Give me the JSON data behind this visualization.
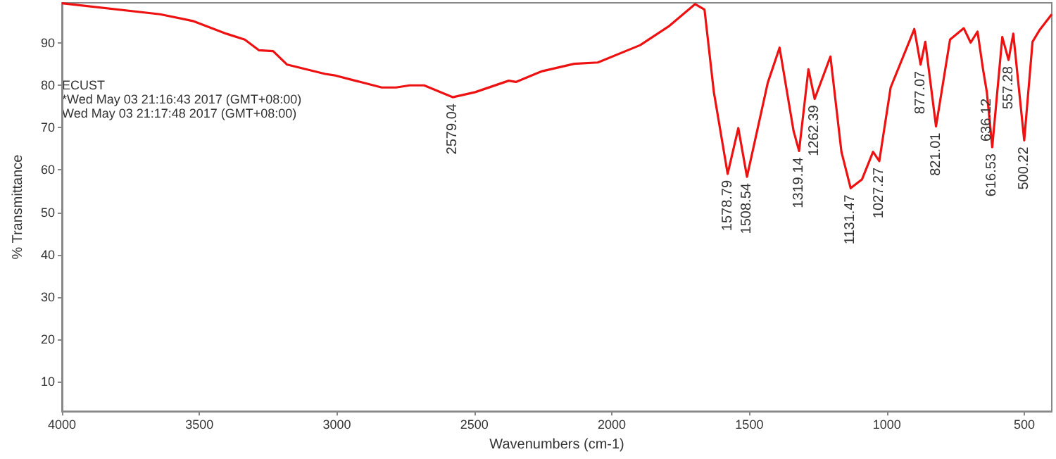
{
  "chart_data": {
    "type": "line",
    "xlabel": "Wavenumbers (cm-1)",
    "ylabel": "% Transmittance",
    "xlim": [
      4000,
      400
    ],
    "xticks": [
      4000,
      3500,
      3000,
      2500,
      2000,
      1500,
      1000,
      500
    ],
    "ylim": [
      3,
      99.5
    ],
    "yticks": [
      10,
      20,
      30,
      40,
      50,
      60,
      70,
      80,
      90
    ],
    "marker": "none",
    "line_style": "solid",
    "x": [
      4000,
      3643,
      3524,
      3402,
      3335,
      3284,
      3232,
      3181,
      3043,
      3011,
      2837,
      2785,
      2735,
      2683,
      2579,
      2497,
      2375,
      2349,
      2256,
      2137,
      2051,
      1897,
      1794,
      1697,
      1663,
      1629,
      1578.79,
      1540,
      1508.54,
      1433,
      1390,
      1339,
      1319.14,
      1285,
      1262.39,
      1205,
      1165,
      1131.47,
      1090,
      1050,
      1027.27,
      986,
      900,
      877.07,
      860,
      821.01,
      770,
      720,
      695,
      670,
      650,
      636.12,
      616.53,
      580,
      557.28,
      540,
      500.22,
      470,
      445,
      400
    ],
    "series": [
      {
        "color": "#ee1111",
        "values": [
          99.4,
          96.8,
          95.2,
          92.2,
          90.8,
          88.3,
          88.1,
          84.9,
          82.7,
          82.4,
          79.5,
          79.5,
          80.0,
          80.0,
          77.2,
          78.4,
          81.1,
          80.8,
          83.3,
          85.1,
          85.4,
          89.5,
          93.9,
          99.2,
          97.9,
          78.4,
          59.1,
          69.9,
          58.4,
          80.6,
          88.9,
          69.2,
          64.5,
          83.8,
          76.8,
          86.8,
          64.3,
          55.7,
          57.8,
          64.3,
          62.1,
          79.5,
          93.3,
          84.9,
          90.3,
          70.3,
          90.8,
          93.5,
          90.1,
          92.7,
          83.8,
          78.4,
          65.4,
          91.4,
          86.0,
          92.2,
          67.0,
          90.3,
          93.0,
          96.8
        ]
      }
    ],
    "annotations": [
      "ECUST",
      "*Wed May 03 21:16:43 2017 (GMT+08:00)",
      "Wed May 03 21:17:48 2017 (GMT+08:00)",
      {
        "text": "2579.04",
        "x": 2579,
        "y": 77.2
      },
      {
        "text": "1578.79",
        "x": 1578.79,
        "y": 59.1
      },
      {
        "text": "1508.54",
        "x": 1508.54,
        "y": 58.4
      },
      {
        "text": "1319.14",
        "x": 1319.14,
        "y": 64.5
      },
      {
        "text": "1262.39",
        "x": 1262.39,
        "y": 76.8
      },
      {
        "text": "1131.47",
        "x": 1131.47,
        "y": 55.7
      },
      {
        "text": "1027.27",
        "x": 1027.27,
        "y": 62.1
      },
      {
        "text": "877.07",
        "x": 877.07,
        "y": 84.9
      },
      {
        "text": "821.01",
        "x": 821.01,
        "y": 70.3
      },
      {
        "text": "636.12",
        "x": 636.12,
        "y": 78.4
      },
      {
        "text": "616.53",
        "x": 616.53,
        "y": 65.4
      },
      {
        "text": "557.28",
        "x": 557.28,
        "y": 86.0
      },
      {
        "text": "500.22",
        "x": 500.22,
        "y": 67.0
      }
    ]
  }
}
